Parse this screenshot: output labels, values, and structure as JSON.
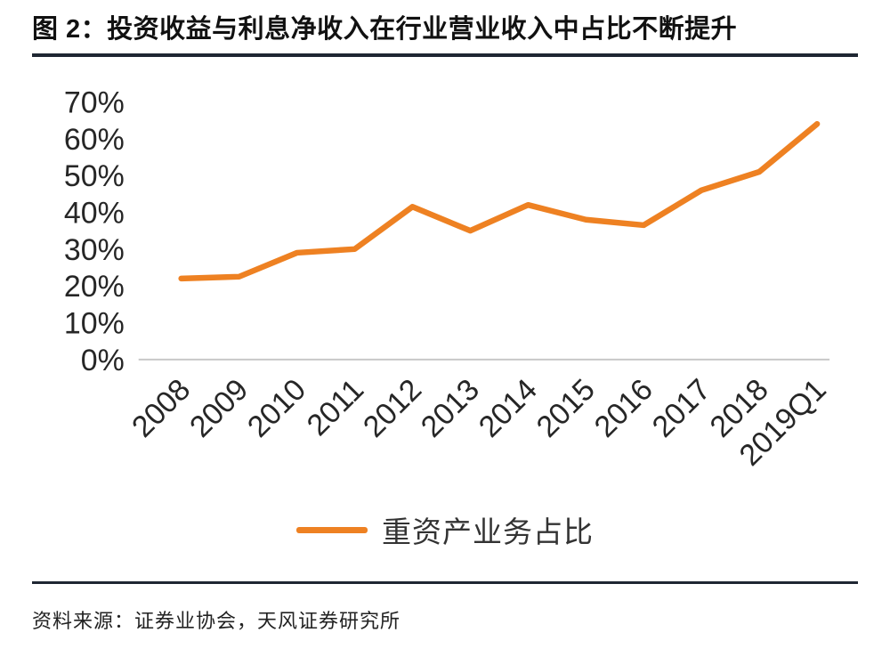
{
  "header": {
    "title": "图 2：投资收益与利息净收入在行业营业收入中占比不断提升"
  },
  "chart_data": {
    "type": "line",
    "categories": [
      "2008",
      "2009",
      "2010",
      "2011",
      "2012",
      "2013",
      "2014",
      "2015",
      "2016",
      "2017",
      "2018",
      "2019Q1"
    ],
    "series": [
      {
        "name": "重资产业务占比",
        "values": [
          22,
          22.5,
          29,
          30,
          41.5,
          35,
          42,
          38,
          36.5,
          46,
          51,
          64
        ]
      }
    ],
    "title": "",
    "xlabel": "",
    "ylabel": "",
    "ylim": [
      0,
      70
    ],
    "y_ticks": [
      0,
      10,
      20,
      30,
      40,
      50,
      60,
      70
    ],
    "y_tick_format": "percent",
    "grid": false,
    "legend_position": "bottom",
    "line_color": "#EE8122"
  },
  "footer": {
    "source": "资料来源：证券业协会，天风证券研究所"
  },
  "colors": {
    "accent": "#EE8122",
    "rule": "#1f2733",
    "axis_baseline": "#c8c8c8",
    "text": "#262626"
  }
}
